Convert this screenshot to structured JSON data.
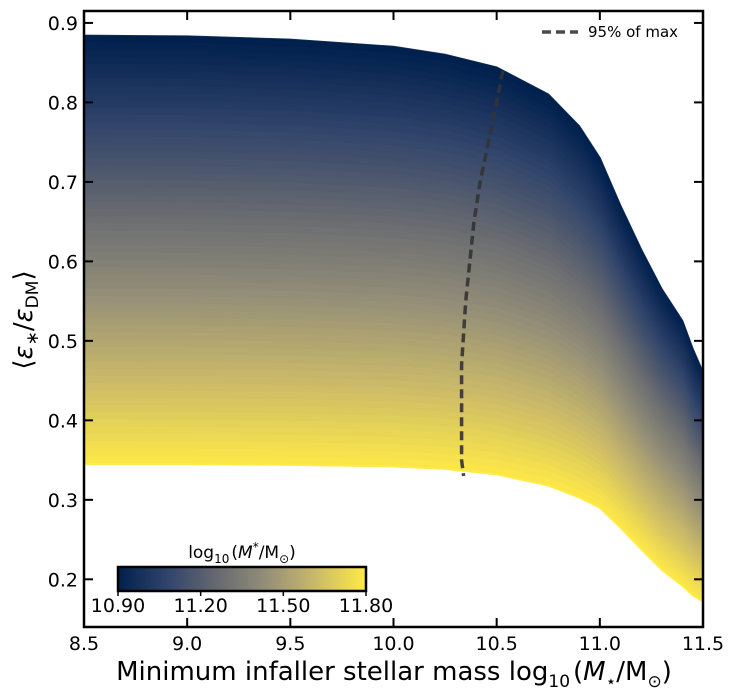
{
  "chart_data": {
    "type": "line",
    "title": "",
    "xlabel": {
      "main": "Minimum infaller stellar mass log",
      "sub": "10",
      "open": "(",
      "var": "M",
      "varSub": "⋆",
      "slash": "/M",
      "solarSub": "⊙",
      "close": ")"
    },
    "ylabel": {
      "open": "⟨",
      "eps": "ε",
      "sub1": "∗",
      "slash": "/",
      "eps2": "ε",
      "sub2": "DM",
      "close": "⟩"
    },
    "xlim": [
      8.5,
      11.5
    ],
    "ylim": [
      0.14,
      0.915
    ],
    "xticks": [
      8.5,
      9.0,
      9.5,
      10.0,
      10.5,
      11.0,
      11.5
    ],
    "xtick_labels": [
      "8.5",
      "9.0",
      "9.5",
      "10.0",
      "10.5",
      "11.0",
      "11.5"
    ],
    "yticks": [
      0.2,
      0.3,
      0.4,
      0.5,
      0.6,
      0.7,
      0.8,
      0.9
    ],
    "ytick_labels": [
      "0.2",
      "0.3",
      "0.4",
      "0.5",
      "0.6",
      "0.7",
      "0.8",
      "0.9"
    ],
    "series_family": {
      "description": "curves colored by log10(M*/Msun) from 10.90 to 11.80",
      "count": 60,
      "colormap_range": [
        10.9,
        11.8
      ],
      "x": [
        8.5,
        9.0,
        9.5,
        10.0,
        10.25,
        10.5,
        10.75,
        10.9,
        11.0,
        11.1,
        11.2,
        11.3,
        11.4,
        11.45,
        11.5
      ],
      "top_curve": {
        "label": "log10(M*/Msun) = 10.90",
        "values": [
          0.884,
          0.883,
          0.879,
          0.87,
          0.86,
          0.844,
          0.81,
          0.77,
          0.73,
          0.67,
          0.615,
          0.565,
          0.525,
          0.49,
          0.46
        ]
      },
      "bottom_curve": {
        "label": "log10(M*/Msun) = 11.80",
        "values": [
          0.345,
          0.345,
          0.344,
          0.342,
          0.339,
          0.332,
          0.318,
          0.303,
          0.29,
          0.265,
          0.238,
          0.212,
          0.192,
          0.18,
          0.172
        ]
      }
    },
    "reference_line": {
      "name": "95% of max",
      "style": "dashed",
      "color": "#333333",
      "x": [
        10.53,
        10.5,
        10.46,
        10.42,
        10.39,
        10.37,
        10.35,
        10.34,
        10.33,
        10.33,
        10.33,
        10.33,
        10.34
      ],
      "y": [
        0.84,
        0.8,
        0.75,
        0.7,
        0.65,
        0.6,
        0.55,
        0.51,
        0.47,
        0.43,
        0.39,
        0.35,
        0.33
      ]
    },
    "legend": {
      "position": "top-right",
      "label": "95% of max"
    },
    "colorbar": {
      "label": {
        "pre": "log",
        "sub": "10",
        "open": "(",
        "var": "M",
        "sup": "*",
        "slash": "/M",
        "solarSub": "⊙",
        "close": ")"
      },
      "ticks": [
        10.9,
        11.2,
        11.5,
        11.8
      ],
      "tick_labels": [
        "10.90",
        "11.20",
        "11.50",
        "11.80"
      ],
      "colors": [
        "#00204d",
        "#31446b",
        "#666970",
        "#958f78",
        "#cbba69",
        "#ffea46"
      ],
      "position": "lower-left"
    }
  }
}
